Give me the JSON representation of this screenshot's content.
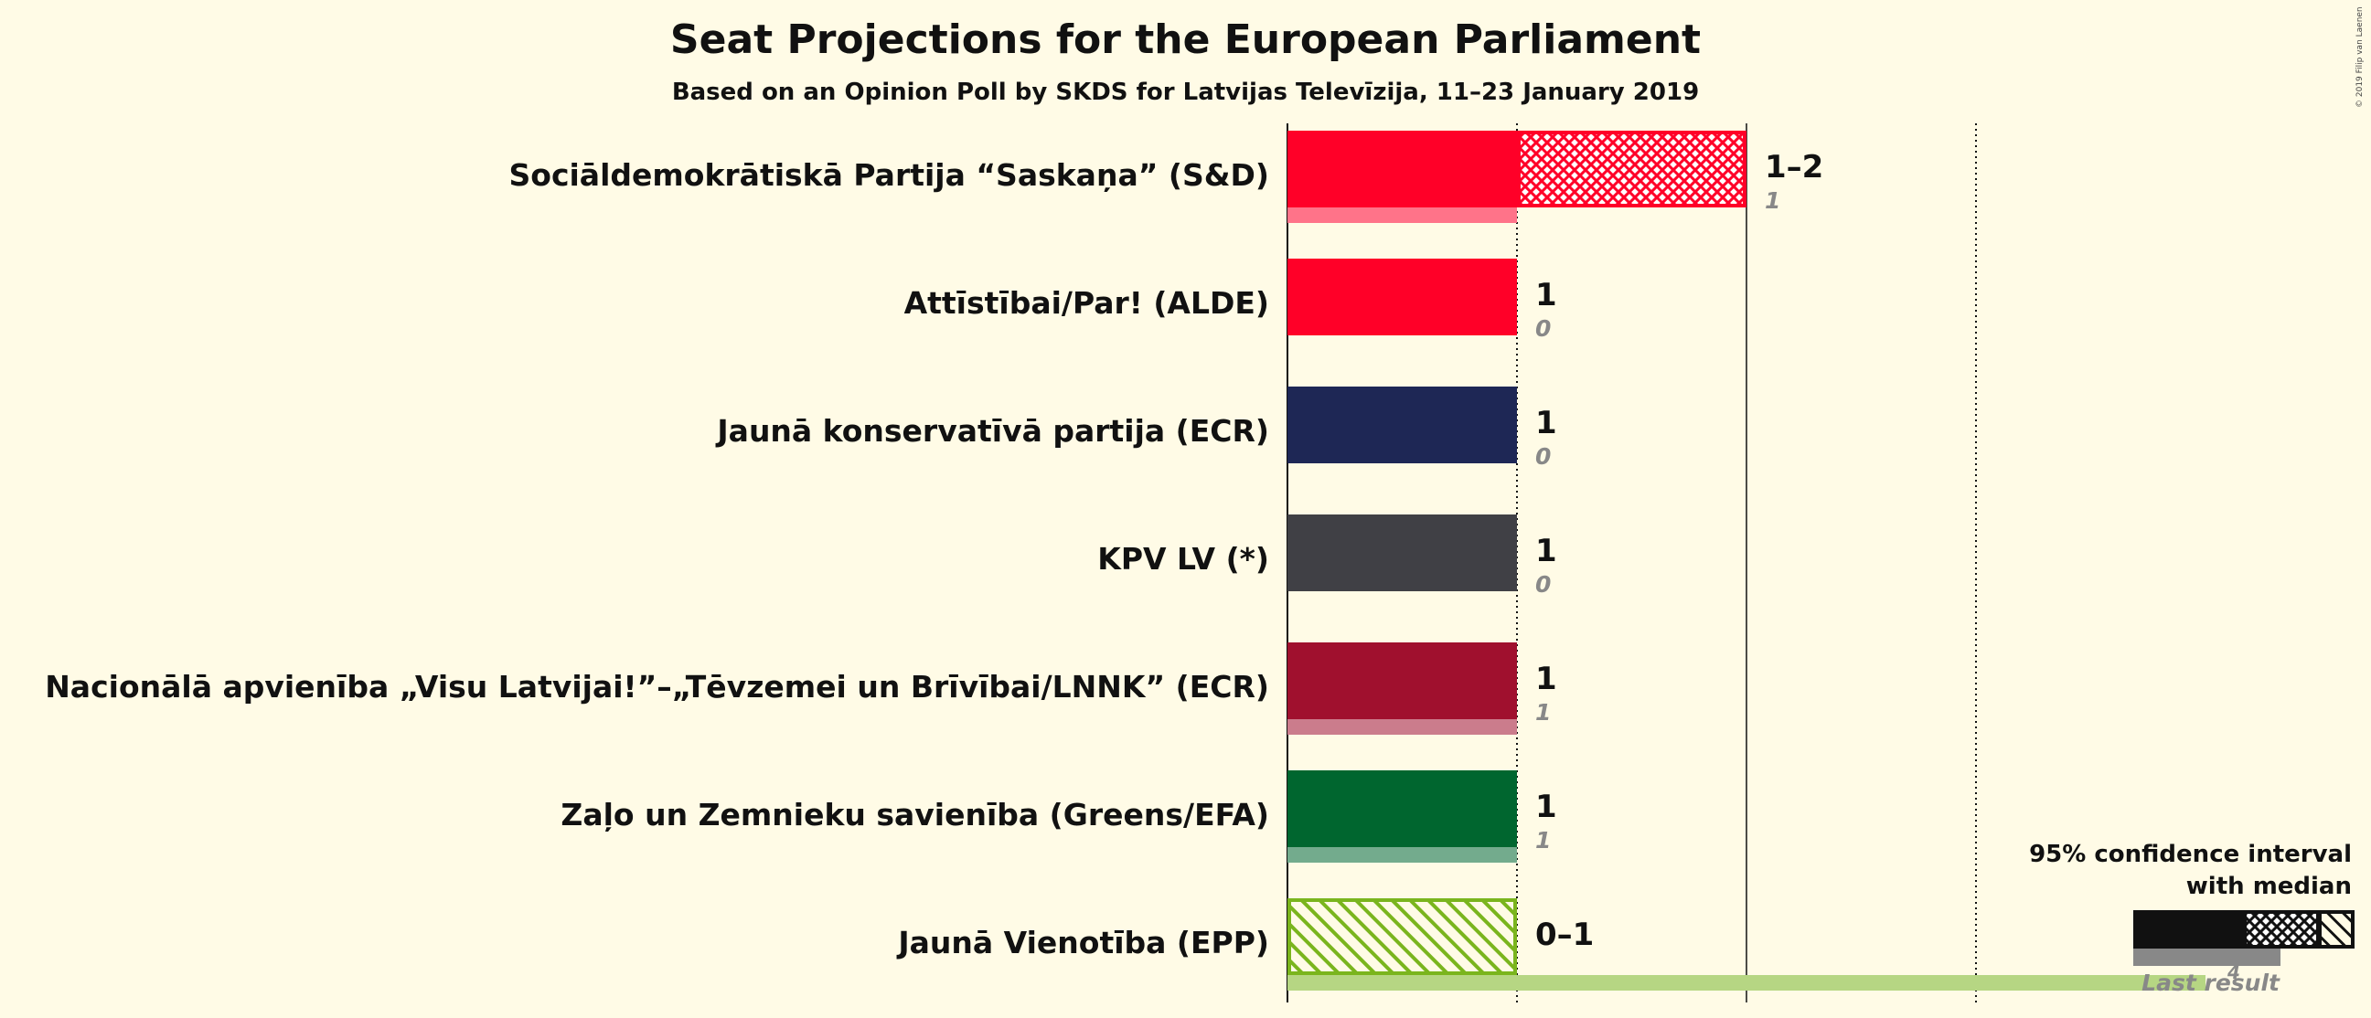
{
  "chart_data": {
    "type": "bar",
    "title": "Seat Projections for the European Parliament",
    "subtitle": "Based on an Opinion Poll by SKDS for Latvijas Televīzija, 11–23 January 2019",
    "copyright": "© 2019 Filip van Laenen",
    "xlim": [
      0,
      4
    ],
    "gridlines": [
      1,
      2,
      3
    ],
    "categories": [
      "Sociāldemokrātiskā Partija “Saskaņa” (S&D)",
      "Attīstībai/Par! (ALDE)",
      "Jaunā konservatīvā partija (ECR)",
      "KPV LV (*)",
      "Nacionālā apvienība „Visu Latvijai!”–„Tēvzemei un Brīvībai/LNNK” (ECR)",
      "Zaļo un Zemnieku savienība (Greens/EFA)",
      "Jaunā Vienotība (EPP)"
    ],
    "series": [
      {
        "name": "Sociāldemokrātiskā Partija “Saskaņa” (S&D)",
        "color": "#ff0028",
        "median": 1,
        "ci_low": 1,
        "ci_high": 2,
        "range_label": "1–2",
        "last_result": 1,
        "last_result_label": "1"
      },
      {
        "name": "Attīstībai/Par! (ALDE)",
        "color": "#ff0028",
        "median": 1,
        "ci_low": 1,
        "ci_high": 1,
        "range_label": "1",
        "last_result": 0,
        "last_result_label": "0"
      },
      {
        "name": "Jaunā konservatīvā partija (ECR)",
        "color": "#1e2755",
        "median": 1,
        "ci_low": 1,
        "ci_high": 1,
        "range_label": "1",
        "last_result": 0,
        "last_result_label": "0"
      },
      {
        "name": "KPV LV (*)",
        "color": "#404045",
        "median": 1,
        "ci_low": 1,
        "ci_high": 1,
        "range_label": "1",
        "last_result": 0,
        "last_result_label": "0"
      },
      {
        "name": "Nacionālā apvienība „Visu Latvijai!”–„Tēvzemei un Brīvībai/LNNK” (ECR)",
        "color": "#a0102e",
        "median": 1,
        "ci_low": 1,
        "ci_high": 1,
        "range_label": "1",
        "last_result": 1,
        "last_result_label": "1"
      },
      {
        "name": "Zaļo un Zemnieku savienība (Greens/EFA)",
        "color": "#00662f",
        "median": 1,
        "ci_low": 1,
        "ci_high": 1,
        "range_label": "1",
        "last_result": 1,
        "last_result_label": "1"
      },
      {
        "name": "Jaunā Vienotība (EPP)",
        "color": "#7ab51d",
        "median": 0,
        "ci_low": 0,
        "ci_high": 1,
        "range_label": "0–1",
        "last_result": 4,
        "last_result_label": "4"
      }
    ],
    "legend": {
      "title_line1": "95% confidence interval",
      "title_line2": "with median",
      "last_result_label": "Last result",
      "last_result_value": "4",
      "position": "bottom-right"
    }
  }
}
